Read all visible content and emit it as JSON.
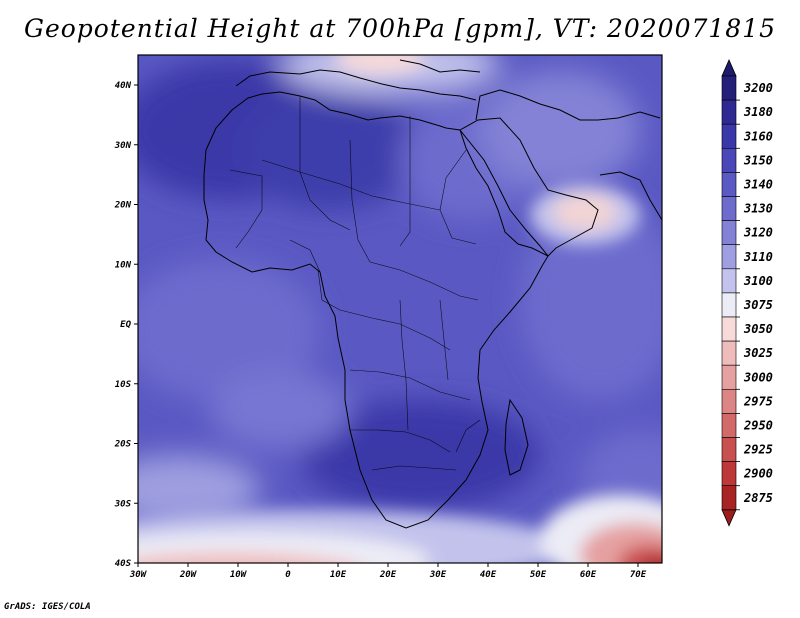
{
  "title": "Geopotential Height at 700hPa [gpm], VT: 2020071815",
  "credit": "GrADS: IGES/COLA",
  "map": {
    "lon_labels": [
      "30W",
      "20W",
      "10W",
      "0",
      "10E",
      "20E",
      "30E",
      "40E",
      "50E",
      "60E",
      "70E"
    ],
    "lat_labels": [
      "40N",
      "30N",
      "20N",
      "10N",
      "EQ",
      "10S",
      "20S",
      "30S",
      "40S"
    ]
  },
  "colorbar": {
    "levels": [
      "3200",
      "3180",
      "3160",
      "3150",
      "3140",
      "3130",
      "3120",
      "3110",
      "3100",
      "3075",
      "3050",
      "3025",
      "3000",
      "2975",
      "2950",
      "2925",
      "2900",
      "2875"
    ],
    "colors": [
      "#24207a",
      "#2e2a92",
      "#3a37a8",
      "#4a48b8",
      "#5b5ac4",
      "#6d6ccd",
      "#8382d6",
      "#9e9ee0",
      "#c2c2ec",
      "#ececf6",
      "#f7dada",
      "#efbcbc",
      "#e5a0a0",
      "#dc8585",
      "#d26a6a",
      "#c95050",
      "#bd3838",
      "#a82424"
    ],
    "top_arrow_color": "#1e1a6c",
    "bottom_arrow_color": "#9c1c1c"
  }
}
